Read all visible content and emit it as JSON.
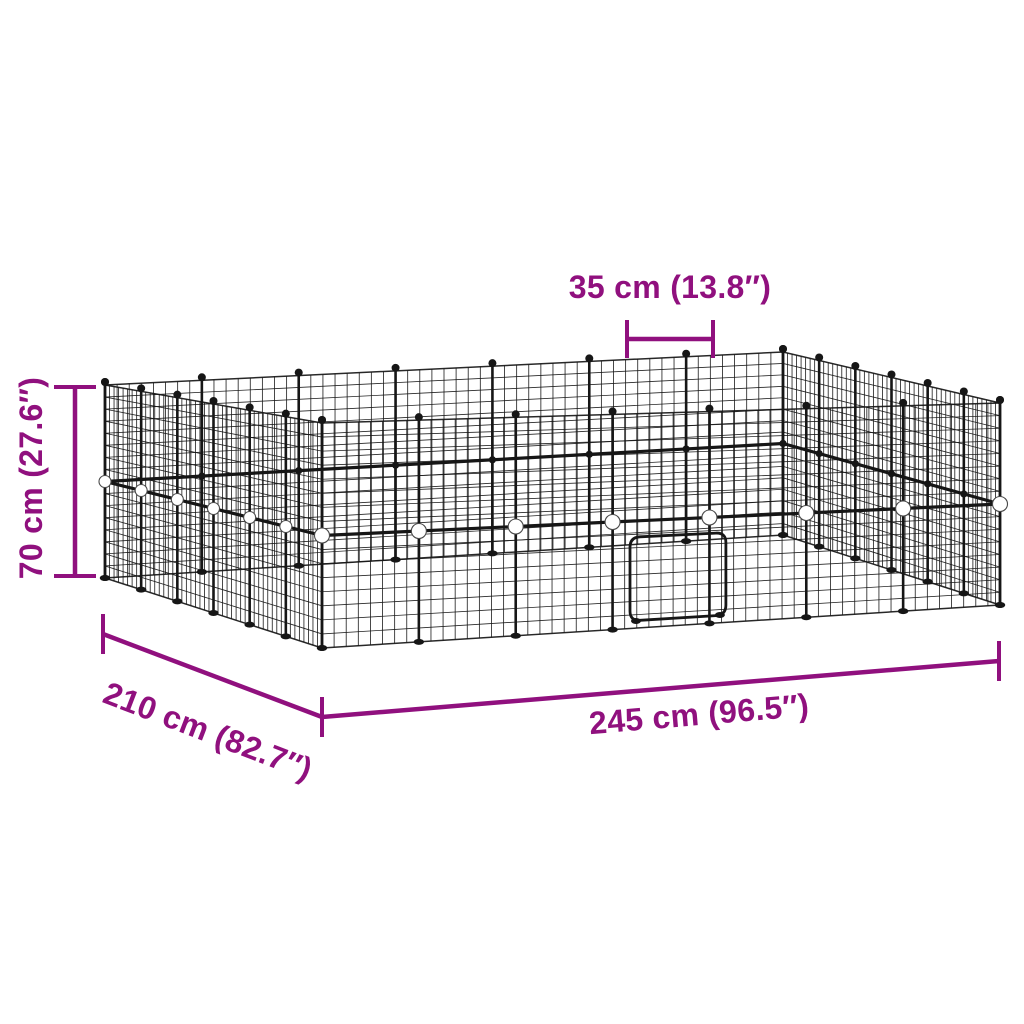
{
  "diagram": {
    "description": "Wire mesh pet playpen / small-animal cage enclosure dimension diagram",
    "colors": {
      "accent": "#90107E",
      "mesh": "#161616",
      "connector_white": "#FFFFFF",
      "background": "#FFFFFF"
    },
    "dimensions": {
      "panel_width": {
        "label": "35 cm (13.8″)",
        "cm": 35,
        "inches": 13.8
      },
      "height": {
        "label": "70 cm (27.6″)",
        "cm": 70,
        "inches": 27.6
      },
      "depth": {
        "label": "210 cm (82.7″)",
        "cm": 210,
        "inches": 82.7
      },
      "width": {
        "label": "245 cm (96.5″)",
        "cm": 245,
        "inches": 96.5
      }
    },
    "structure": {
      "panels_along_width": 7,
      "panels_along_depth": 6,
      "panels_high": 2,
      "mesh_cells_per_panel": 8,
      "door": {
        "wall": "front-right",
        "panel_index": 4,
        "row": "bottom",
        "corners": "rounded"
      },
      "connectors": {
        "front_mid_rail": "white balls",
        "other_junctions": "black"
      }
    }
  }
}
